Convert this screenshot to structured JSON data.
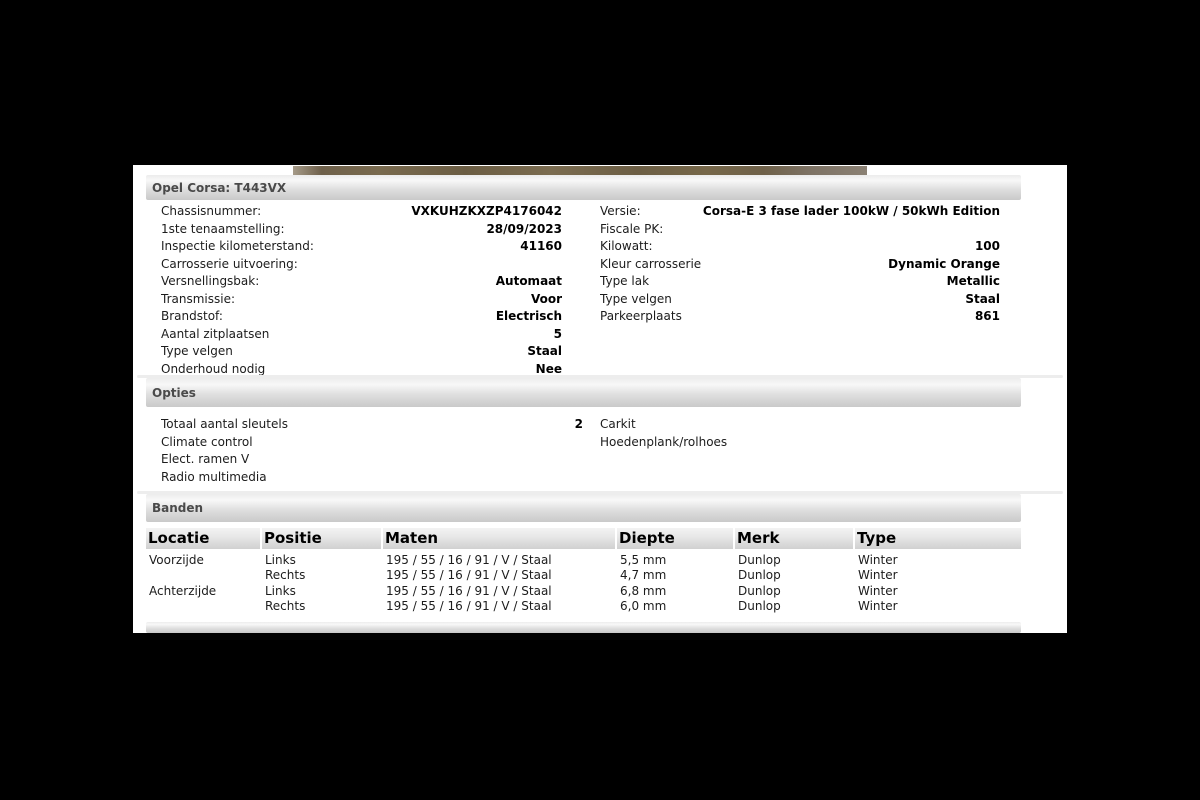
{
  "vehicle": {
    "title": "Opel Corsa: T443VX",
    "left": [
      {
        "label": "Chassisnummer:",
        "value": "VXKUHZKXZP4176042"
      },
      {
        "label": "1ste tenaamstelling:",
        "value": "28/09/2023"
      },
      {
        "label": "Inspectie kilometerstand:",
        "value": "41160"
      },
      {
        "label": "Carrosserie uitvoering:",
        "value": ""
      },
      {
        "label": "Versnellingsbak:",
        "value": "Automaat"
      },
      {
        "label": "Transmissie:",
        "value": "Voor"
      },
      {
        "label": "Brandstof:",
        "value": "Electrisch"
      },
      {
        "label": "Aantal zitplaatsen",
        "value": "5"
      },
      {
        "label": "Type velgen",
        "value": "Staal"
      },
      {
        "label": "Onderhoud nodig",
        "value": "Nee"
      }
    ],
    "right": [
      {
        "label": "Versie:",
        "value": "Corsa-E 3 fase lader 100kW / 50kWh Edition"
      },
      {
        "label": "Fiscale PK:",
        "value": ""
      },
      {
        "label": "Kilowatt:",
        "value": "100"
      },
      {
        "label": "Kleur carrosserie",
        "value": "Dynamic Orange"
      },
      {
        "label": "Type lak",
        "value": "Metallic"
      },
      {
        "label": "Type velgen",
        "value": "Staal"
      },
      {
        "label": "Parkeerplaats",
        "value": "861"
      }
    ]
  },
  "opties": {
    "title": "Opties",
    "left": [
      {
        "label": "Totaal aantal sleutels",
        "value": "2"
      },
      {
        "label": "Climate control",
        "value": ""
      },
      {
        "label": "Elect. ramen V",
        "value": ""
      },
      {
        "label": "Radio multimedia",
        "value": ""
      }
    ],
    "right": [
      {
        "label": "Carkit"
      },
      {
        "label": "Hoedenplank/rolhoes"
      }
    ]
  },
  "banden": {
    "title": "Banden",
    "columns": [
      "Locatie",
      "Positie",
      "Maten",
      "Diepte",
      "Merk",
      "Type"
    ],
    "rows": [
      [
        "Voorzijde",
        "Links",
        "195 / 55 / 16 / 91 / V / Staal",
        "5,5 mm",
        "Dunlop",
        "Winter"
      ],
      [
        "",
        "Rechts",
        "195 / 55 / 16 / 91 / V / Staal",
        "4,7 mm",
        "Dunlop",
        "Winter"
      ],
      [
        "Achterzijde",
        "Links",
        "195 / 55 / 16 / 91 / V / Staal",
        "6,8 mm",
        "Dunlop",
        "Winter"
      ],
      [
        "",
        "Rechts",
        "195 / 55 / 16 / 91 / V / Staal",
        "6,0 mm",
        "Dunlop",
        "Winter"
      ]
    ]
  }
}
